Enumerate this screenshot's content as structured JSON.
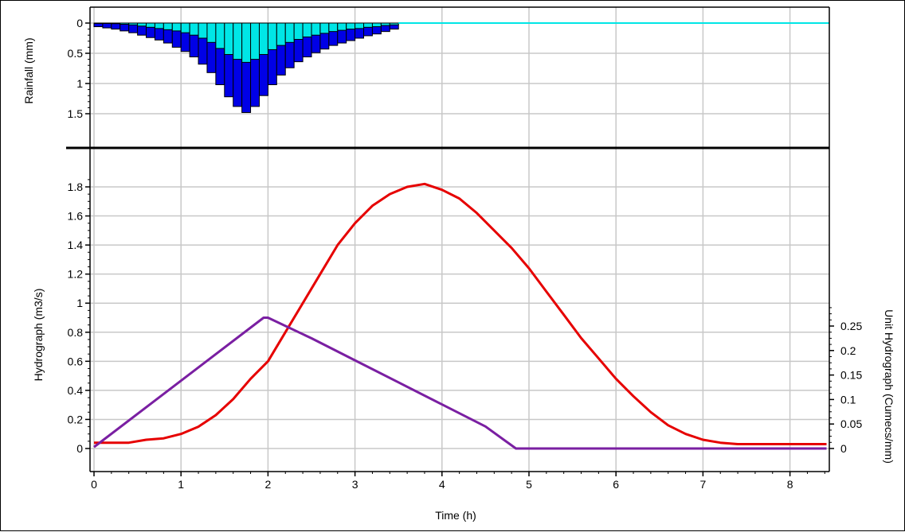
{
  "chart_data": {
    "type": "line",
    "xlabel": "Time (h)",
    "x_ticks": [
      "0",
      "1",
      "2",
      "3",
      "4",
      "5",
      "6",
      "7",
      "8"
    ],
    "xlim": [
      0,
      8.42
    ],
    "grid": true,
    "colors": {
      "hydrograph": "#e60000",
      "unit_hydrograph": "#7a1fa2",
      "rainfall_total": "#0000e6",
      "rainfall_effective": "#00e6e6",
      "grid": "#c8c8c8",
      "divider": "#000000"
    },
    "rainfall": {
      "type": "bar",
      "ylabel": "Rainfall (mm)",
      "y_inverted": true,
      "ylim": [
        0,
        1.6
      ],
      "y_ticks": [
        "0",
        "0.5",
        "1",
        "1.5"
      ],
      "bar_width_h": 0.1,
      "x_start": [
        0,
        0.1,
        0.2,
        0.3,
        0.4,
        0.5,
        0.6,
        0.7,
        0.8,
        0.9,
        1.0,
        1.1,
        1.2,
        1.3,
        1.4,
        1.5,
        1.6,
        1.7,
        1.8,
        1.9,
        2.0,
        2.1,
        2.2,
        2.3,
        2.4,
        2.5,
        2.6,
        2.7,
        2.8,
        2.9,
        3.0,
        3.1,
        3.2,
        3.3,
        3.4
      ],
      "total": [
        0.06,
        0.08,
        0.1,
        0.13,
        0.16,
        0.2,
        0.24,
        0.28,
        0.33,
        0.4,
        0.47,
        0.56,
        0.68,
        0.82,
        1.02,
        1.22,
        1.38,
        1.48,
        1.38,
        1.2,
        1.02,
        0.86,
        0.74,
        0.64,
        0.56,
        0.49,
        0.43,
        0.37,
        0.33,
        0.29,
        0.25,
        0.21,
        0.18,
        0.14,
        0.1
      ],
      "effective": [
        0.0,
        0.0,
        0.01,
        0.02,
        0.03,
        0.05,
        0.07,
        0.09,
        0.11,
        0.13,
        0.16,
        0.2,
        0.25,
        0.32,
        0.42,
        0.52,
        0.6,
        0.65,
        0.6,
        0.52,
        0.44,
        0.37,
        0.32,
        0.27,
        0.23,
        0.2,
        0.17,
        0.14,
        0.12,
        0.1,
        0.09,
        0.07,
        0.06,
        0.04,
        0.03
      ]
    },
    "hydrograph": {
      "ylabel": "Hydrograph (m3/s)",
      "ylim": [
        -0.02,
        1.9
      ],
      "y_ticks": [
        "0",
        "0.2",
        "0.4",
        "0.6",
        "0.8",
        "1",
        "1.2",
        "1.4",
        "1.6",
        "1.8"
      ],
      "x": [
        0.0,
        0.4,
        0.6,
        0.8,
        1.0,
        1.2,
        1.4,
        1.6,
        1.8,
        2.0,
        2.2,
        2.4,
        2.6,
        2.8,
        3.0,
        3.2,
        3.4,
        3.6,
        3.8,
        4.0,
        4.2,
        4.4,
        4.6,
        4.8,
        5.0,
        5.2,
        5.4,
        5.6,
        5.8,
        6.0,
        6.2,
        6.4,
        6.6,
        6.8,
        7.0,
        7.2,
        7.4,
        7.6,
        7.8,
        8.0,
        8.42
      ],
      "y": [
        0.04,
        0.04,
        0.06,
        0.07,
        0.1,
        0.15,
        0.23,
        0.34,
        0.48,
        0.6,
        0.8,
        1.0,
        1.2,
        1.4,
        1.55,
        1.67,
        1.75,
        1.8,
        1.82,
        1.78,
        1.72,
        1.62,
        1.5,
        1.38,
        1.24,
        1.08,
        0.92,
        0.76,
        0.62,
        0.48,
        0.36,
        0.25,
        0.16,
        0.1,
        0.06,
        0.04,
        0.03,
        0.03,
        0.03,
        0.03,
        0.03
      ]
    },
    "unit_hydrograph": {
      "ylabel": "Unit Hydrograph (Cumecs/mm)",
      "ylim": [
        -0.005,
        0.35
      ],
      "y_ticks": [
        "0",
        "0.05",
        "0.1",
        "0.15",
        "0.2",
        "0.25"
      ],
      "x": [
        0.0,
        1.95,
        2.0,
        2.5,
        3.0,
        3.5,
        4.0,
        4.5,
        4.85,
        8.42
      ],
      "y": [
        0.003,
        0.267,
        0.267,
        0.225,
        0.18,
        0.135,
        0.09,
        0.045,
        0.0,
        0.0
      ]
    }
  }
}
